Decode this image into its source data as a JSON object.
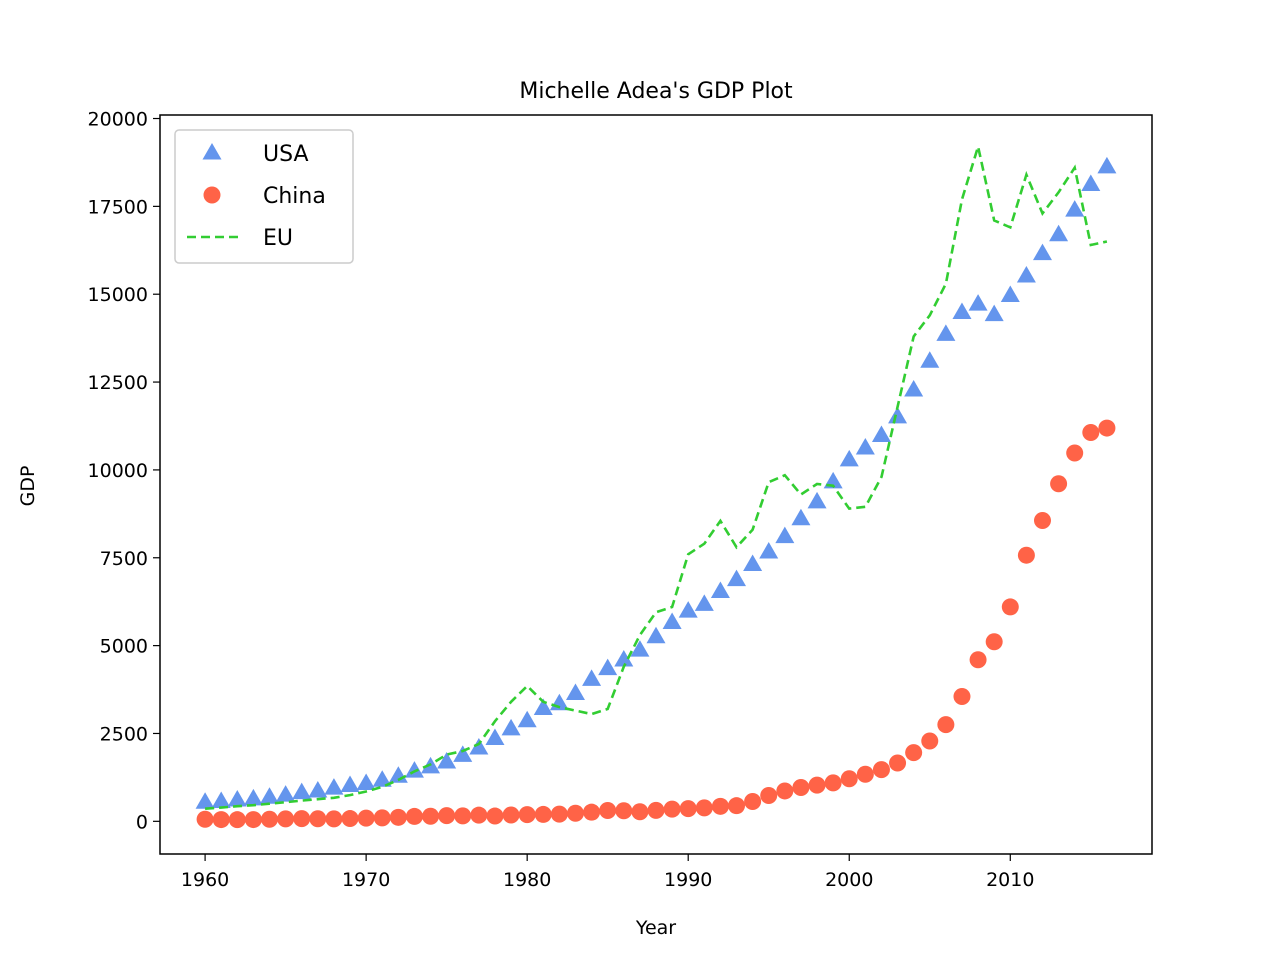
{
  "chart_data": {
    "type": "scatter",
    "title": "Michelle Adea's GDP Plot",
    "xlabel": "Year",
    "ylabel": "GDP",
    "xlim": [
      1957.2,
      2018.8
    ],
    "ylim": [
      -930,
      20100
    ],
    "xticks": [
      1960,
      1970,
      1980,
      1990,
      2000,
      2010
    ],
    "yticks": [
      0,
      2500,
      5000,
      7500,
      10000,
      12500,
      15000,
      17500,
      20000
    ],
    "grid": false,
    "legend_position": "top-left",
    "x": [
      1960,
      1961,
      1962,
      1963,
      1964,
      1965,
      1966,
      1967,
      1968,
      1969,
      1970,
      1971,
      1972,
      1973,
      1974,
      1975,
      1976,
      1977,
      1978,
      1979,
      1980,
      1981,
      1982,
      1983,
      1984,
      1985,
      1986,
      1987,
      1988,
      1989,
      1990,
      1991,
      1992,
      1993,
      1994,
      1995,
      1996,
      1997,
      1998,
      1999,
      2000,
      2001,
      2002,
      2003,
      2004,
      2005,
      2006,
      2007,
      2008,
      2009,
      2010,
      2011,
      2012,
      2013,
      2014,
      2015,
      2016
    ],
    "series": [
      {
        "name": "USA",
        "style": "triangle-markers",
        "color": "#6495ED",
        "values": [
          543,
          563,
          605,
          638,
          686,
          744,
          815,
          862,
          943,
          1019,
          1076,
          1168,
          1282,
          1429,
          1549,
          1689,
          1878,
          2086,
          2357,
          2632,
          2863,
          3211,
          3345,
          3638,
          4041,
          4347,
          4590,
          4870,
          5253,
          5658,
          5980,
          6174,
          6539,
          6879,
          7309,
          7664,
          8100,
          8609,
          9089,
          9661,
          10285,
          10622,
          10978,
          11511,
          12275,
          13094,
          13856,
          14478,
          14719,
          14419,
          14964,
          15518,
          16155,
          16692,
          17393,
          18121,
          18625
        ]
      },
      {
        "name": "China",
        "style": "circle-markers",
        "color": "#FF6347",
        "values": [
          60,
          50,
          47,
          50,
          59,
          70,
          76,
          73,
          70,
          79,
          92,
          99,
          114,
          139,
          144,
          163,
          154,
          175,
          150,
          179,
          191,
          196,
          205,
          230,
          260,
          309,
          301,
          273,
          312,
          348,
          361,
          383,
          427,
          445,
          564,
          734,
          864,
          962,
          1029,
          1094,
          1211,
          1339,
          1471,
          1660,
          1955,
          2286,
          2752,
          3552,
          4598,
          5110,
          6101,
          7573,
          8561,
          9607,
          10482,
          11065,
          11191
        ]
      },
      {
        "name": "EU",
        "style": "dashed-line",
        "color": "#32CD32",
        "values": [
          360,
          390,
          430,
          460,
          500,
          545,
          590,
          630,
          670,
          745,
          850,
          980,
          1180,
          1420,
          1620,
          1900,
          2000,
          2200,
          2850,
          3400,
          3850,
          3400,
          3250,
          3150,
          3050,
          3200,
          4400,
          5300,
          5950,
          6100,
          7600,
          7900,
          8550,
          7800,
          8300,
          9650,
          9850,
          9300,
          9600,
          9550,
          8900,
          8950,
          9800,
          11800,
          13800,
          14400,
          15300,
          17700,
          19200,
          17100,
          16900,
          18400,
          17300,
          17900,
          18600,
          16400,
          16500
        ]
      }
    ]
  }
}
